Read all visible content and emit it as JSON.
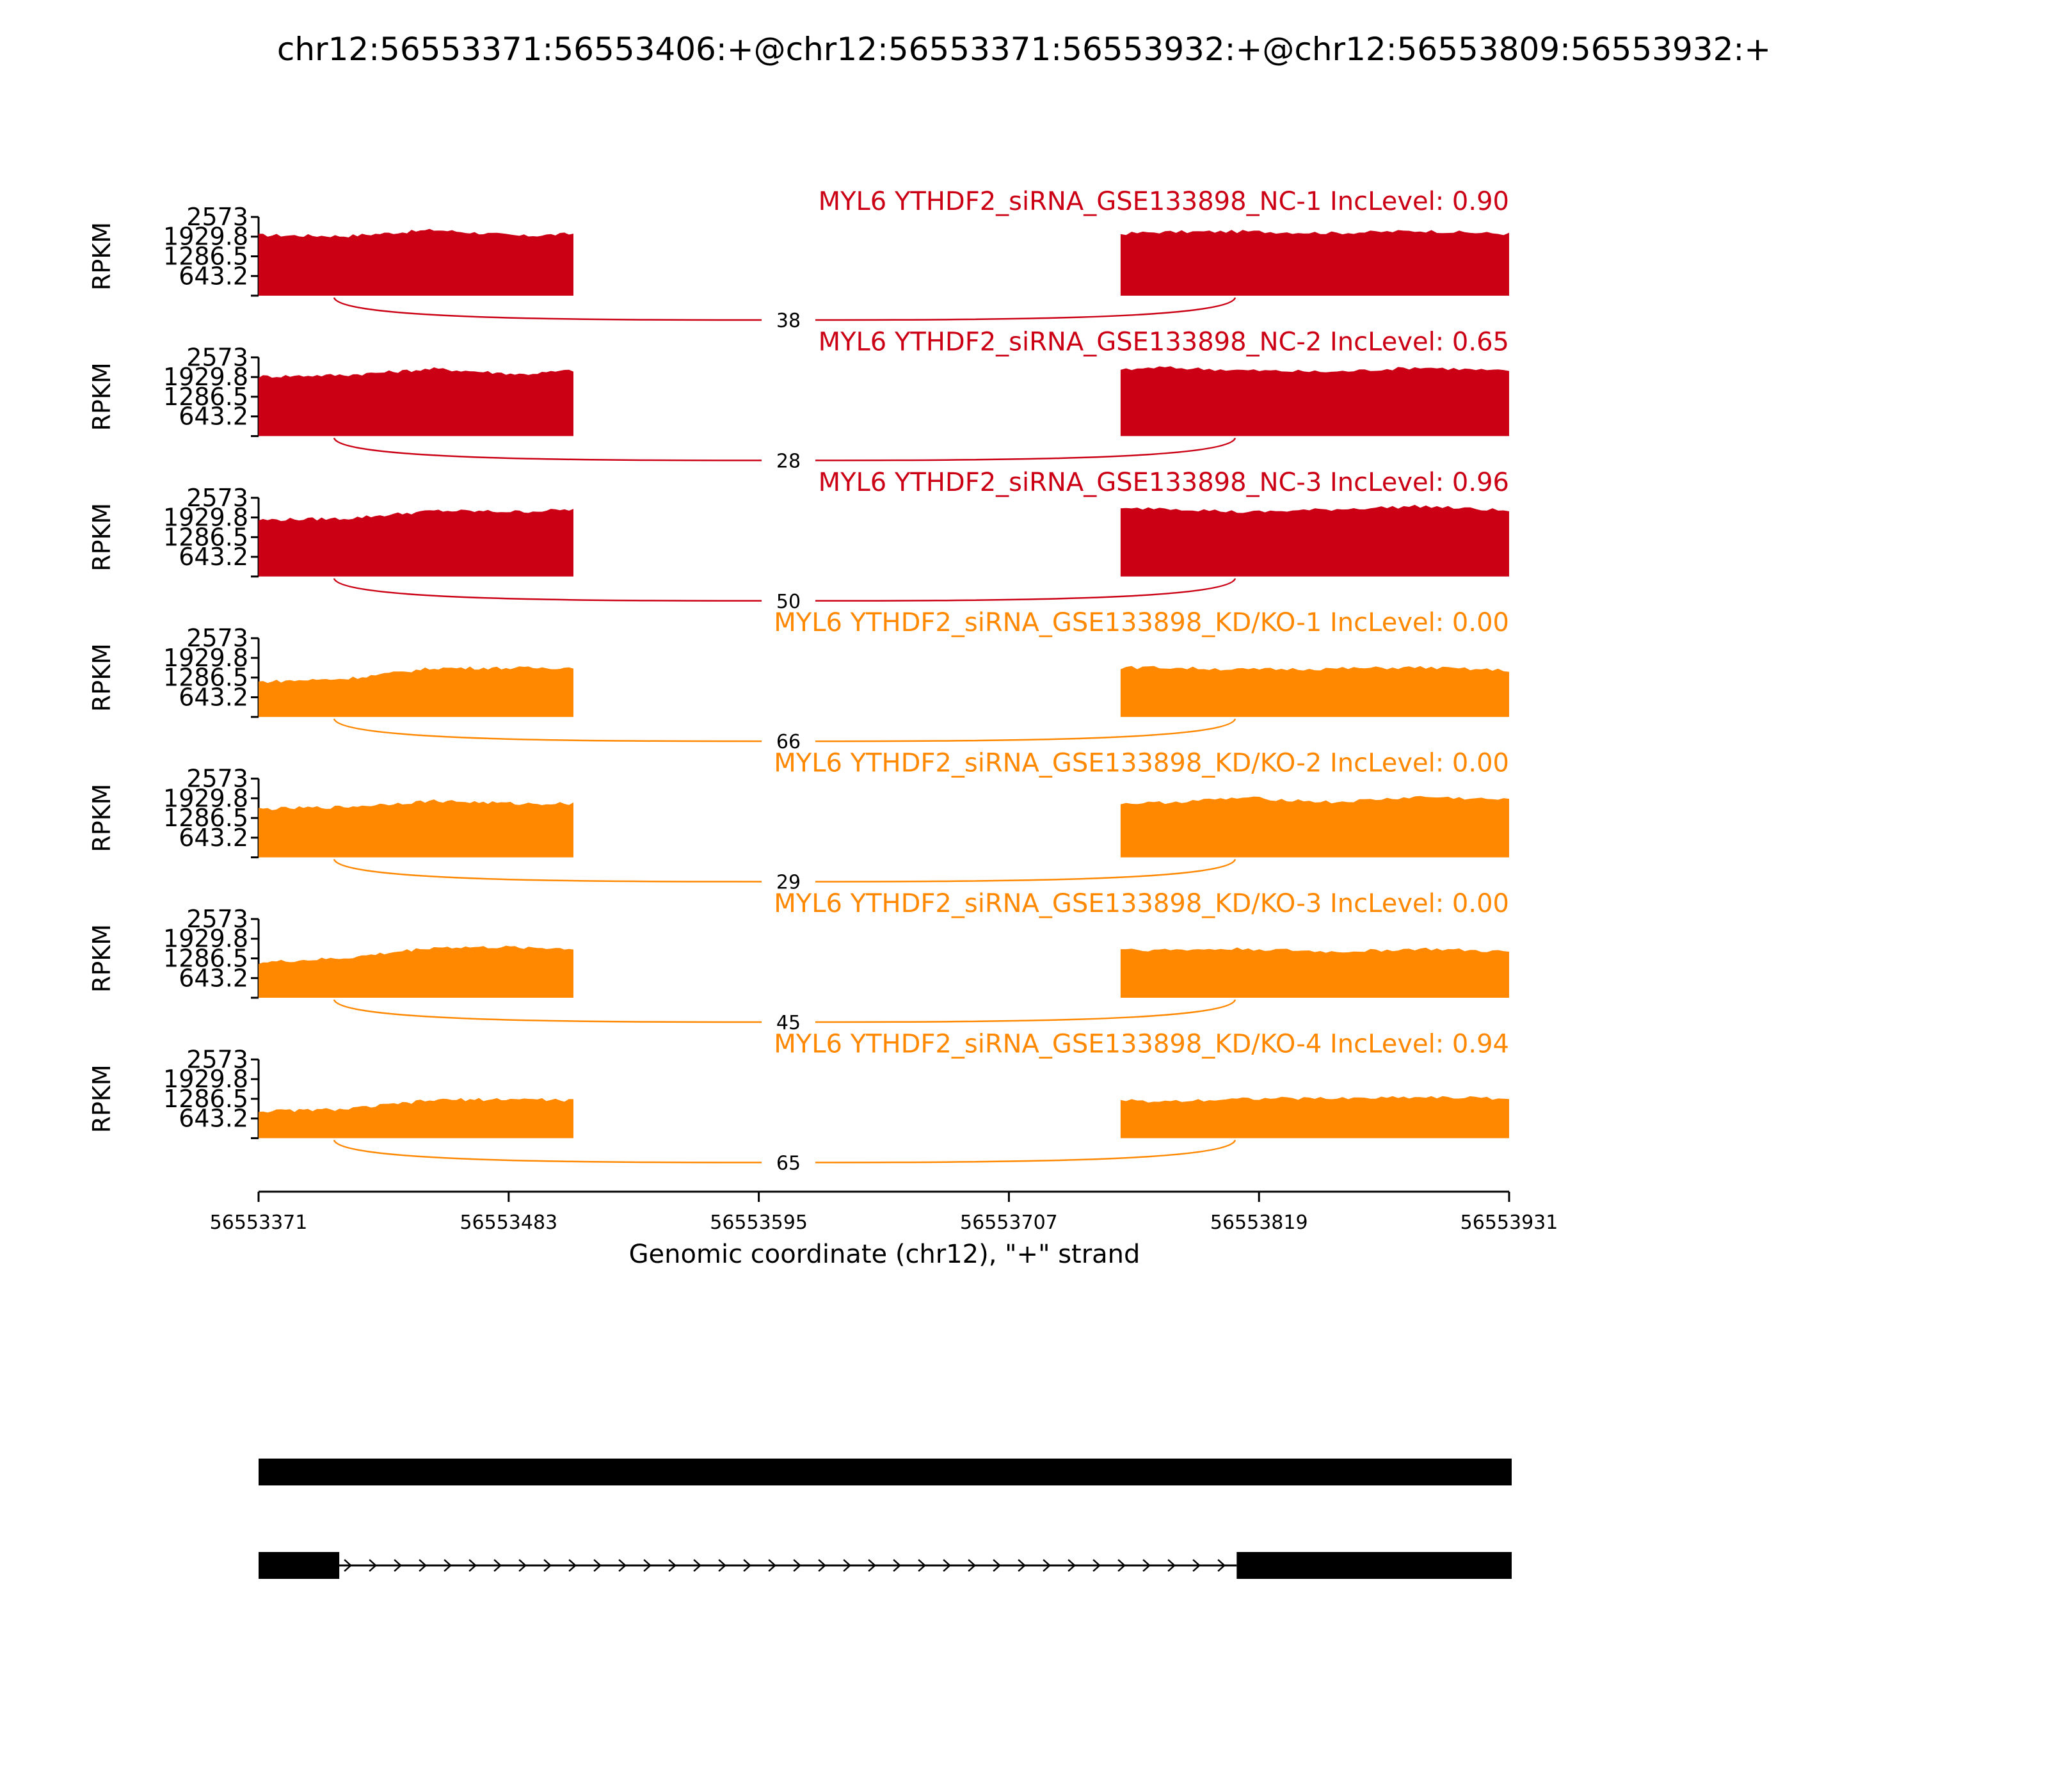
{
  "chart_data": {
    "type": "area",
    "title": "chr12:56553371:56553406:+@chr12:56553371:56553932:+@chr12:56553809:56553932:+",
    "xlabel": "Genomic coordinate (chr12), \"+\" strand",
    "ylabel": "RPKM",
    "xlim": [
      56553371,
      56553931
    ],
    "x_ticks": [
      "56553371",
      "56553483",
      "56553595",
      "56553707",
      "56553819",
      "56553931"
    ],
    "ylim": [
      0,
      2573
    ],
    "y_ticks": [
      "2573",
      "1929.8",
      "1286.5",
      "643.2"
    ],
    "exon_regions": [
      [
        56553371,
        56553512
      ],
      [
        56553757,
        56553931
      ]
    ],
    "colors": {
      "NC": "#cc0015",
      "KD/KO": "#ff8800"
    },
    "series": [
      {
        "name": "MYL6 YTHDF2_siRNA_GSE133898_NC-1 IncLevel: 0.90",
        "group": "NC",
        "junction_count": "38",
        "level": [
          1980,
          1950,
          2150,
          1950,
          2080,
          2100,
          2050,
          2120,
          2020
        ]
      },
      {
        "name": "MYL6 YTHDF2_siRNA_GSE133898_NC-2 IncLevel: 0.65",
        "group": "NC",
        "junction_count": "28",
        "level": [
          1950,
          2000,
          2200,
          2020,
          2250,
          2150,
          2100,
          2250,
          2120
        ]
      },
      {
        "name": "MYL6 YTHDF2_siRNA_GSE133898_NC-3 IncLevel: 0.96",
        "group": "NC",
        "junction_count": "50",
        "level": [
          1850,
          1900,
          2150,
          2120,
          2250,
          2100,
          2200,
          2300,
          2150
        ]
      },
      {
        "name": "MYL6 YTHDF2_siRNA_GSE133898_KD/KO-1 IncLevel: 0.00",
        "group": "KD/KO",
        "junction_count": "66",
        "level": [
          1150,
          1250,
          1600,
          1600,
          1620,
          1550,
          1580,
          1620,
          1520
        ]
      },
      {
        "name": "MYL6 YTHDF2_siRNA_GSE133898_KD/KO-2 IncLevel: 0.00",
        "group": "KD/KO",
        "junction_count": "29",
        "level": [
          1580,
          1650,
          1850,
          1750,
          1780,
          1950,
          1800,
          1980,
          1880
        ]
      },
      {
        "name": "MYL6 YTHDF2_siRNA_GSE133898_KD/KO-3 IncLevel: 0.00",
        "group": "KD/KO",
        "junction_count": "45",
        "level": [
          1150,
          1300,
          1650,
          1650,
          1560,
          1600,
          1500,
          1600,
          1500
        ]
      },
      {
        "name": "MYL6 YTHDF2_siRNA_GSE133898_KD/KO-4 IncLevel: 0.94",
        "group": "KD/KO",
        "junction_count": "65",
        "level": [
          880,
          950,
          1250,
          1280,
          1200,
          1300,
          1300,
          1350,
          1300
        ]
      }
    ],
    "transcripts": [
      {
        "segments": [
          [
            56553371,
            56553931
          ]
        ],
        "introns": []
      },
      {
        "segments": [
          [
            56553371,
            56553406
          ],
          [
            56553809,
            56553931
          ]
        ],
        "introns": [
          [
            56553406,
            56553809
          ]
        ]
      }
    ]
  }
}
